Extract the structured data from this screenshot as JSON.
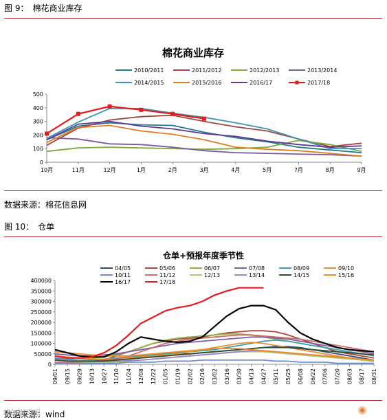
{
  "fig9": {
    "header": "图 9：　棉花商业库存",
    "source": "数据来源：棉花信息网"
  },
  "fig10": {
    "header": "图 10：　仓单",
    "source": "数据来源：wind"
  },
  "watermark": "华尔街见闻",
  "chart_data": [
    {
      "type": "line",
      "title": "棉花商业库存",
      "categories": [
        "10月",
        "11月",
        "12月",
        "1月",
        "2月",
        "3月",
        "4月",
        "5月",
        "7月",
        "8月",
        "9月"
      ],
      "ylim": [
        0,
        500
      ],
      "yticks": [
        0,
        100,
        200,
        300,
        400,
        500
      ],
      "legend_position": "top",
      "series": [
        {
          "name": "2010/2011",
          "color": "#1f7a8c",
          "values": [
            165,
            265,
            290,
            275,
            270,
            220,
            180,
            150,
            110,
            90,
            70
          ]
        },
        {
          "name": "2011/2012",
          "color": "#a0453e",
          "values": [
            125,
            250,
            310,
            335,
            345,
            300,
            260,
            230,
            170,
            115,
            140
          ]
        },
        {
          "name": "2012/2013",
          "color": "#7fa83c",
          "values": [
            80,
            105,
            110,
            105,
            100,
            95,
            100,
            110,
            160,
            130,
            80
          ]
        },
        {
          "name": "2013/2014",
          "color": "#7b5aa0",
          "values": [
            180,
            170,
            135,
            130,
            110,
            85,
            70,
            65,
            60,
            55,
            45
          ]
        },
        {
          "name": "2014/2015",
          "color": "#3f95b0",
          "values": [
            175,
            295,
            395,
            395,
            360,
            330,
            290,
            245,
            170,
            100,
            100
          ]
        },
        {
          "name": "2015/2016",
          "color": "#e07b22",
          "values": [
            145,
            255,
            270,
            230,
            205,
            165,
            110,
            95,
            85,
            65,
            45
          ]
        },
        {
          "name": "2016/17",
          "color": "#5e3a96",
          "values": [
            165,
            280,
            300,
            265,
            245,
            210,
            190,
            155,
            130,
            110,
            120
          ]
        },
        {
          "name": "2017/18",
          "color": "#e41a1c",
          "marker": "square",
          "values": [
            210,
            355,
            410,
            385,
            355,
            320,
            null,
            null,
            null,
            null,
            null
          ]
        }
      ]
    },
    {
      "type": "line",
      "title": "仓单+预报年度季节性",
      "categories": [
        "09/01",
        "09/15",
        "09/29",
        "10/13",
        "10/27",
        "11/10",
        "11/24",
        "12/08",
        "12/22",
        "01/05",
        "01/19",
        "02/02",
        "02/16",
        "03/02",
        "03/16",
        "03/30",
        "04/13",
        "04/27",
        "05/11",
        "05/25",
        "06/08",
        "06/22",
        "07/06",
        "07/20",
        "08/03",
        "08/17",
        "08/31"
      ],
      "ylim": [
        0,
        400000
      ],
      "yticks": [
        0,
        50000,
        100000,
        150000,
        200000,
        250000,
        300000,
        350000,
        400000
      ],
      "legend_position": "top",
      "series": [
        {
          "name": "04/05",
          "color": "#2e4a7d",
          "values": [
            30000,
            20000,
            15000,
            15000,
            20000,
            25000,
            30000,
            35000,
            40000,
            45000,
            50000,
            50000,
            55000,
            60000,
            65000,
            70000,
            75000,
            80000,
            85000,
            85000,
            80000,
            70000,
            60000,
            50000,
            40000,
            30000,
            20000
          ]
        },
        {
          "name": "05/06",
          "color": "#b0453e",
          "values": [
            20000,
            15000,
            10000,
            10000,
            20000,
            40000,
            60000,
            80000,
            100000,
            110000,
            120000,
            125000,
            130000,
            140000,
            150000,
            155000,
            160000,
            160000,
            155000,
            140000,
            120000,
            100000,
            80000,
            60000,
            50000,
            40000,
            30000
          ]
        },
        {
          "name": "06/07",
          "color": "#8fb23c",
          "values": [
            40000,
            35000,
            30000,
            30000,
            35000,
            45000,
            60000,
            80000,
            100000,
            115000,
            125000,
            130000,
            135000,
            140000,
            145000,
            145000,
            140000,
            130000,
            120000,
            110000,
            100000,
            90000,
            80000,
            70000,
            60000,
            50000,
            45000
          ]
        },
        {
          "name": "07/08",
          "color": "#7e5fa6",
          "values": [
            50000,
            45000,
            40000,
            40000,
            45000,
            50000,
            60000,
            70000,
            80000,
            90000,
            100000,
            105000,
            110000,
            115000,
            120000,
            125000,
            130000,
            130000,
            125000,
            120000,
            110000,
            100000,
            90000,
            80000,
            70000,
            60000,
            50000
          ]
        },
        {
          "name": "08/09",
          "color": "#3aa0b5",
          "values": [
            30000,
            25000,
            20000,
            20000,
            25000,
            30000,
            35000,
            40000,
            45000,
            50000,
            55000,
            60000,
            65000,
            70000,
            80000,
            90000,
            100000,
            110000,
            115000,
            110000,
            100000,
            90000,
            80000,
            70000,
            60000,
            50000,
            40000
          ]
        },
        {
          "name": "09/10",
          "color": "#e89033",
          "values": [
            40000,
            35000,
            30000,
            25000,
            25000,
            25000,
            30000,
            35000,
            40000,
            45000,
            50000,
            60000,
            70000,
            80000,
            90000,
            100000,
            105000,
            100000,
            90000,
            80000,
            70000,
            60000,
            50000,
            40000,
            30000,
            20000,
            15000
          ]
        },
        {
          "name": "10/11",
          "color": "#6b8cc9",
          "values": [
            5000,
            5000,
            5000,
            5000,
            5000,
            5000,
            10000,
            10000,
            10000,
            15000,
            15000,
            15000,
            20000,
            20000,
            20000,
            20000,
            20000,
            20000,
            15000,
            15000,
            10000,
            10000,
            10000,
            5000,
            5000,
            5000,
            5000
          ]
        },
        {
          "name": "11/12",
          "color": "#d06b6b",
          "values": [
            10000,
            8000,
            8000,
            10000,
            15000,
            25000,
            40000,
            60000,
            80000,
            100000,
            110000,
            120000,
            125000,
            130000,
            135000,
            140000,
            140000,
            135000,
            130000,
            125000,
            120000,
            110000,
            100000,
            90000,
            80000,
            70000,
            60000
          ]
        },
        {
          "name": "12/13",
          "color": "#a8c87a",
          "values": [
            20000,
            15000,
            12000,
            10000,
            10000,
            12000,
            15000,
            20000,
            25000,
            30000,
            35000,
            40000,
            45000,
            50000,
            55000,
            60000,
            60000,
            60000,
            55000,
            50000,
            45000,
            40000,
            35000,
            30000,
            25000,
            20000,
            20000
          ]
        },
        {
          "name": "13/14",
          "color": "#9b82bd",
          "values": [
            25000,
            20000,
            18000,
            15000,
            15000,
            15000,
            18000,
            20000,
            25000,
            30000,
            35000,
            40000,
            45000,
            50000,
            55000,
            60000,
            65000,
            65000,
            60000,
            55000,
            50000,
            45000,
            40000,
            35000,
            30000,
            25000,
            20000
          ]
        },
        {
          "name": "14/15",
          "color": "#2f4f2f",
          "values": [
            20000,
            15000,
            15000,
            15000,
            15000,
            20000,
            25000,
            30000,
            35000,
            40000,
            45000,
            50000,
            55000,
            60000,
            65000,
            70000,
            75000,
            80000,
            80000,
            80000,
            75000,
            70000,
            65000,
            60000,
            55000,
            50000,
            45000
          ]
        },
        {
          "name": "15/16",
          "color": "#f08a24",
          "values": [
            60000,
            55000,
            50000,
            45000,
            40000,
            40000,
            40000,
            45000,
            50000,
            55000,
            60000,
            65000,
            70000,
            75000,
            75000,
            75000,
            70000,
            65000,
            60000,
            55000,
            50000,
            45000,
            40000,
            35000,
            30000,
            25000,
            20000
          ]
        },
        {
          "name": "16/17",
          "color": "#000000",
          "values": [
            70000,
            55000,
            40000,
            35000,
            35000,
            60000,
            100000,
            130000,
            120000,
            110000,
            105000,
            110000,
            130000,
            180000,
            230000,
            265000,
            280000,
            280000,
            260000,
            200000,
            150000,
            120000,
            100000,
            80000,
            70000,
            65000,
            60000
          ]
        },
        {
          "name": "17/18",
          "color": "#e41a1c",
          "values": [
            40000,
            30000,
            30000,
            35000,
            55000,
            90000,
            140000,
            195000,
            225000,
            255000,
            270000,
            280000,
            300000,
            330000,
            350000,
            365000,
            365000,
            365000,
            null,
            null,
            null,
            null,
            null,
            null,
            null,
            null,
            null
          ]
        }
      ]
    }
  ]
}
